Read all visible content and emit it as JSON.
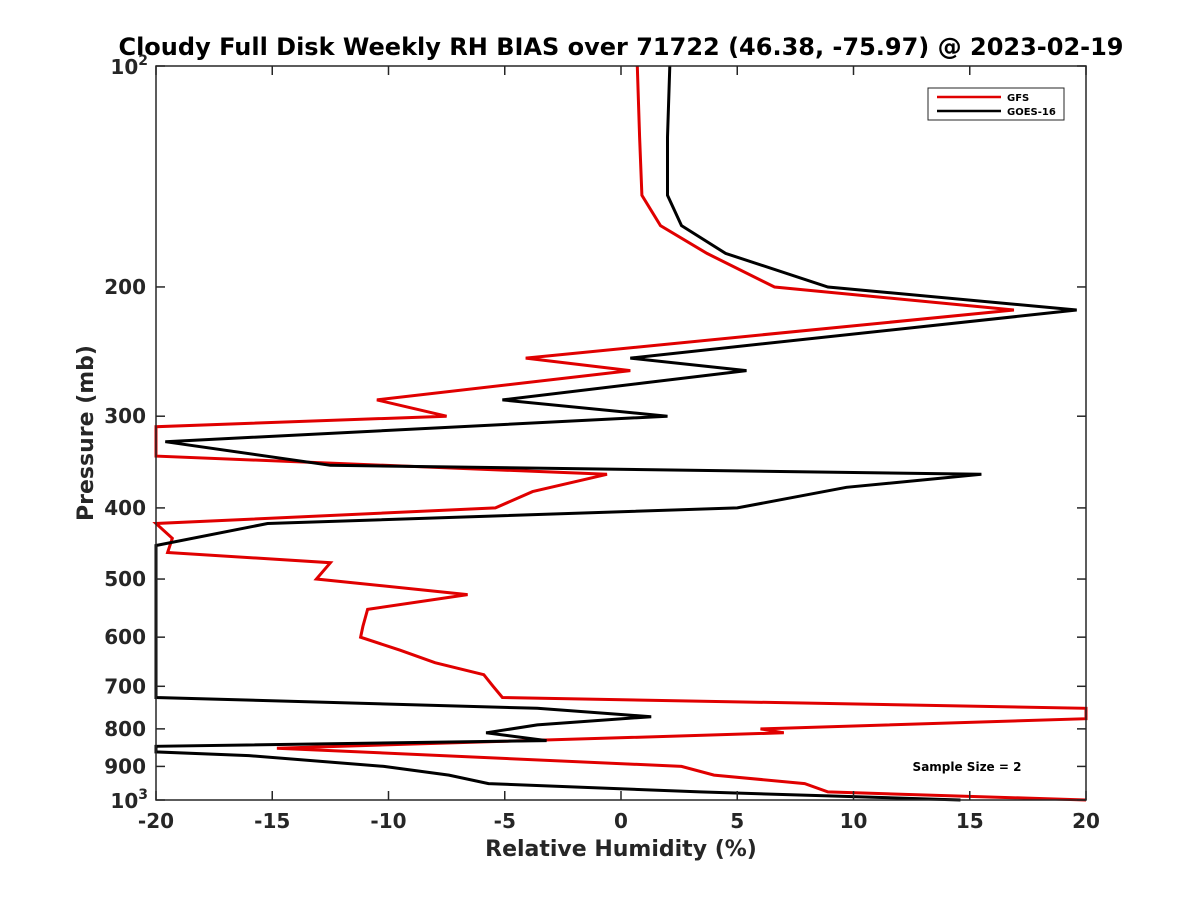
{
  "chart_data": {
    "type": "line",
    "title": "Cloudy Full Disk Weekly RH BIAS over 71722 (46.38, -75.97) @ 2023-02-19",
    "xlabel": "Relative Humidity (%)",
    "ylabel": "Pressure (mb)",
    "xlim": [
      -20,
      20
    ],
    "ylim": [
      100,
      1000
    ],
    "yscale": "log",
    "yreversed": false,
    "x_ticks": [
      {
        "value": -20,
        "label": "-20"
      },
      {
        "value": -15,
        "label": "-15"
      },
      {
        "value": -10,
        "label": "-10"
      },
      {
        "value": -5,
        "label": "-5"
      },
      {
        "value": 0,
        "label": "0"
      },
      {
        "value": 5,
        "label": "5"
      },
      {
        "value": 10,
        "label": "10"
      },
      {
        "value": 15,
        "label": "15"
      },
      {
        "value": 20,
        "label": "20"
      }
    ],
    "y_ticks": [
      {
        "value": 100,
        "base": "10",
        "exp": "2"
      },
      {
        "value": 200,
        "label": "200"
      },
      {
        "value": 300,
        "label": "300"
      },
      {
        "value": 400,
        "label": "400"
      },
      {
        "value": 500,
        "label": "500"
      },
      {
        "value": 600,
        "label": "600"
      },
      {
        "value": 700,
        "label": "700"
      },
      {
        "value": 800,
        "label": "800"
      },
      {
        "value": 900,
        "label": "900"
      },
      {
        "value": 1000,
        "base": "10",
        "exp": "3"
      }
    ],
    "legend_position": "top-right",
    "annotation": "Sample Size = 2",
    "series": [
      {
        "name": "GFS",
        "color": "#e00000",
        "points": [
          {
            "p": 100,
            "x": 0.7
          },
          {
            "p": 125,
            "x": 0.8
          },
          {
            "p": 150,
            "x": 0.9
          },
          {
            "p": 165,
            "x": 1.7
          },
          {
            "p": 180,
            "x": 3.7
          },
          {
            "p": 200,
            "x": 6.6
          },
          {
            "p": 215,
            "x": 16.9
          },
          {
            "p": 250,
            "x": -4.1
          },
          {
            "p": 260,
            "x": 0.4
          },
          {
            "p": 285,
            "x": -10.5
          },
          {
            "p": 300,
            "x": -7.5
          },
          {
            "p": 310,
            "x": -20.0
          },
          {
            "p": 340,
            "x": -20.0
          },
          {
            "p": 360,
            "x": -0.6
          },
          {
            "p": 380,
            "x": -3.8
          },
          {
            "p": 400,
            "x": -5.4
          },
          {
            "p": 420,
            "x": -20.0
          },
          {
            "p": 440,
            "x": -19.3
          },
          {
            "p": 460,
            "x": -19.5
          },
          {
            "p": 475,
            "x": -12.5
          },
          {
            "p": 500,
            "x": -13.1
          },
          {
            "p": 525,
            "x": -6.6
          },
          {
            "p": 550,
            "x": -10.9
          },
          {
            "p": 580,
            "x": -11.1
          },
          {
            "p": 600,
            "x": -11.2
          },
          {
            "p": 625,
            "x": -9.5
          },
          {
            "p": 650,
            "x": -8.0
          },
          {
            "p": 675,
            "x": -5.9
          },
          {
            "p": 700,
            "x": -5.5
          },
          {
            "p": 725,
            "x": -5.1
          },
          {
            "p": 750,
            "x": 20.0
          },
          {
            "p": 775,
            "x": 20.0
          },
          {
            "p": 800,
            "x": 6.0
          },
          {
            "p": 810,
            "x": 7.0
          },
          {
            "p": 850,
            "x": -14.8
          },
          {
            "p": 900,
            "x": 2.6
          },
          {
            "p": 925,
            "x": 4.0
          },
          {
            "p": 950,
            "x": 7.9
          },
          {
            "p": 975,
            "x": 8.9
          },
          {
            "p": 1000,
            "x": 20.0
          }
        ]
      },
      {
        "name": "GOES-16",
        "color": "#000000",
        "points": [
          {
            "p": 100,
            "x": 2.1
          },
          {
            "p": 125,
            "x": 2.0
          },
          {
            "p": 150,
            "x": 2.0
          },
          {
            "p": 165,
            "x": 2.6
          },
          {
            "p": 180,
            "x": 4.5
          },
          {
            "p": 200,
            "x": 8.9
          },
          {
            "p": 215,
            "x": 19.6
          },
          {
            "p": 250,
            "x": 0.4
          },
          {
            "p": 260,
            "x": 5.4
          },
          {
            "p": 285,
            "x": -5.1
          },
          {
            "p": 300,
            "x": 2.0
          },
          {
            "p": 325,
            "x": -19.6
          },
          {
            "p": 350,
            "x": -12.5
          },
          {
            "p": 360,
            "x": 15.5
          },
          {
            "p": 375,
            "x": 9.7
          },
          {
            "p": 400,
            "x": 5.0
          },
          {
            "p": 420,
            "x": -15.2
          },
          {
            "p": 450,
            "x": -20.0
          },
          {
            "p": 725,
            "x": -20.0
          },
          {
            "p": 750,
            "x": -3.6
          },
          {
            "p": 770,
            "x": 1.3
          },
          {
            "p": 790,
            "x": -3.6
          },
          {
            "p": 810,
            "x": -5.8
          },
          {
            "p": 830,
            "x": -3.2
          },
          {
            "p": 845,
            "x": -20.0
          },
          {
            "p": 860,
            "x": -20.0
          },
          {
            "p": 870,
            "x": -16.0
          },
          {
            "p": 900,
            "x": -10.2
          },
          {
            "p": 925,
            "x": -7.4
          },
          {
            "p": 950,
            "x": -5.7
          },
          {
            "p": 975,
            "x": 3.4
          },
          {
            "p": 1000,
            "x": 14.6
          }
        ]
      }
    ]
  }
}
